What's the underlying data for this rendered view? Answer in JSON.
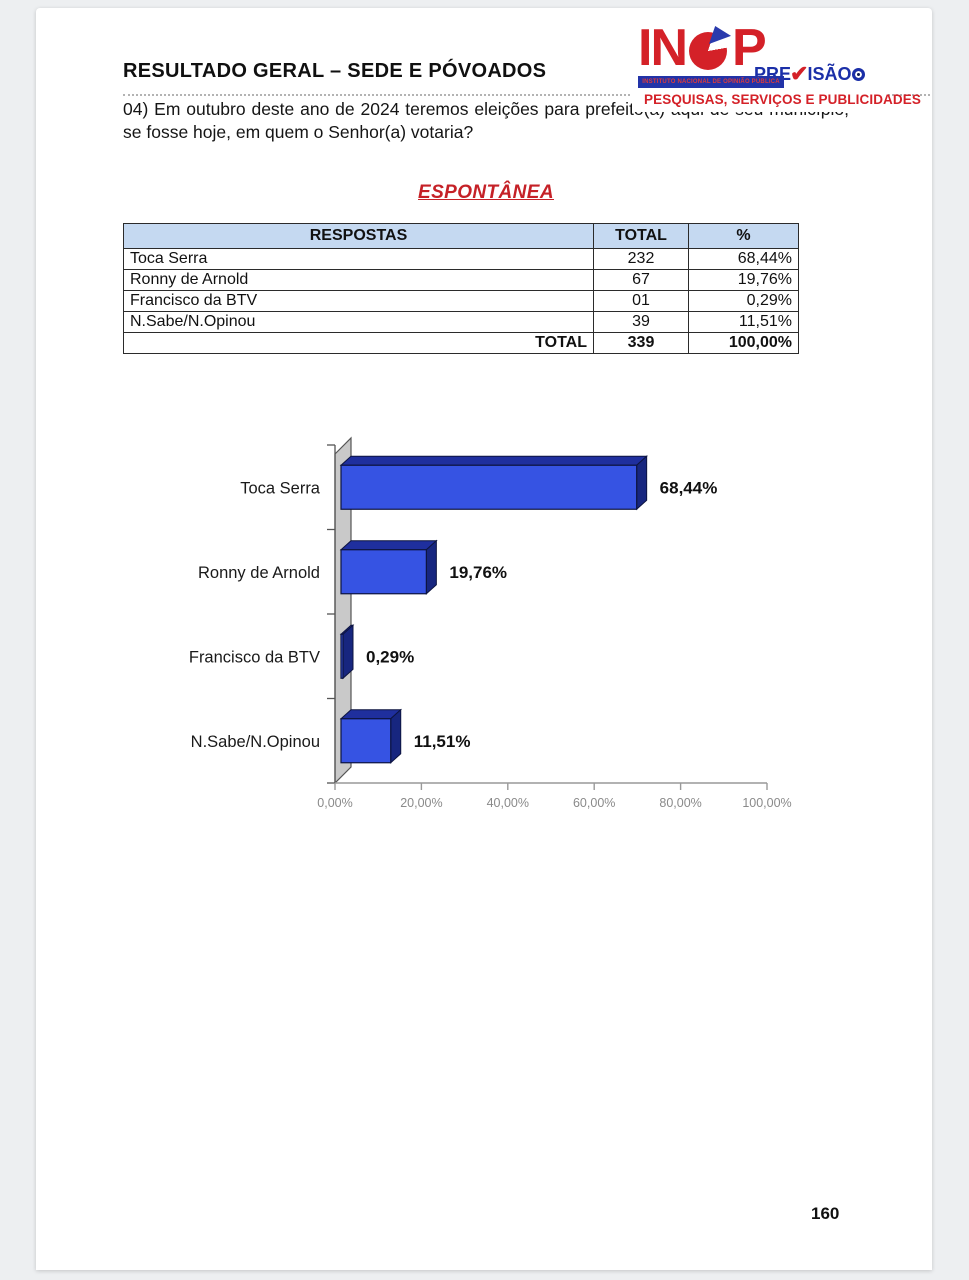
{
  "page": {
    "title": "RESULTADO GERAL – SEDE E PÓVOADOS",
    "question": "04) Em outubro deste ano de 2024 teremos eleições para prefeito(a) aqui de seu município, se fosse hoje, em quem o Senhor(a) votaria?",
    "section_heading": "ESPONTÂNEA",
    "page_number": "160"
  },
  "logo": {
    "name_part1": "IN",
    "name_part2": "P",
    "previsao_pre": "PRE",
    "previsao_sao": "ISÃO",
    "check_glyph": "✔",
    "institute_line": "INSTITUTO NACIONAL DE OPINIÃO PÚBLICA",
    "tagline": "PESQUISAS, SERVIÇOS E PUBLICIDADES",
    "colors": {
      "red": "#d42128",
      "blue": "#2233a8"
    }
  },
  "table": {
    "headers": [
      "RESPOSTAS",
      "TOTAL",
      "%"
    ],
    "rows": [
      [
        "Toca Serra",
        "232",
        "68,44%"
      ],
      [
        "Ronny de Arnold",
        "67",
        "19,76%"
      ],
      [
        "Francisco da BTV",
        "01",
        "0,29%"
      ],
      [
        "N.Sabe/N.Opinou",
        "39",
        "11,51%"
      ]
    ],
    "footer": [
      "TOTAL",
      "339",
      "100,00%"
    ]
  },
  "chart_data": {
    "type": "bar",
    "orientation": "horizontal",
    "title": "",
    "categories": [
      "Toca Serra",
      "Ronny de Arnold",
      "Francisco da BTV",
      "N.Sabe/N.Opinou"
    ],
    "values": [
      68.44,
      19.76,
      0.29,
      11.51
    ],
    "value_labels": [
      "68,44%",
      "19,76%",
      "0,29%",
      "11,51%"
    ],
    "x_ticks": [
      0,
      20,
      40,
      60,
      80,
      100
    ],
    "x_tick_labels": [
      "0,00%",
      "20,00%",
      "40,00%",
      "60,00%",
      "80,00%",
      "100,00%"
    ],
    "xlim": [
      0,
      100
    ],
    "style_3d": true,
    "bar_front_color": "#3653e3",
    "bar_top_color": "#1f2f9e",
    "bar_side_color": "#17267f",
    "bar_outline_color": "#0d1440",
    "wall_color": "#c9c9c9",
    "wall_outline_color": "#555555",
    "axis_color": "#999999",
    "tick_label_color": "#8a8a8a",
    "label_color": "#1a1a1a",
    "value_label_color": "#111111"
  }
}
